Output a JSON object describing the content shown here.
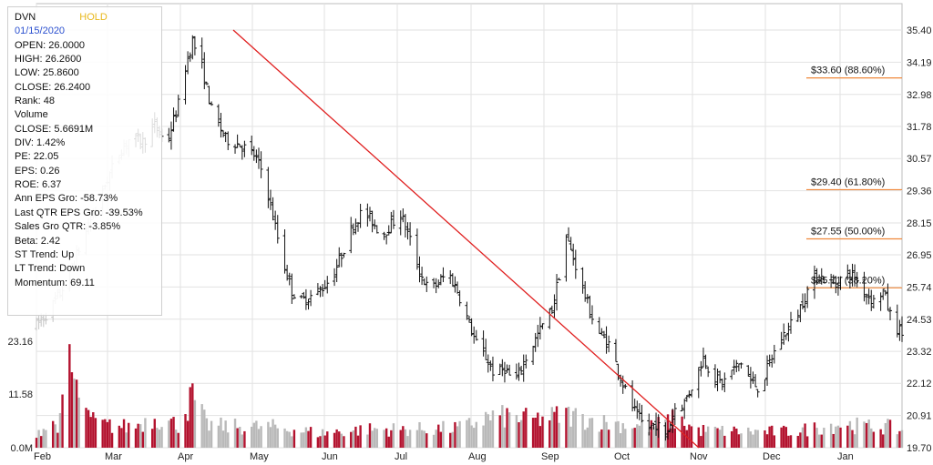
{
  "colors": {
    "grid": "#e2e2e2",
    "axis": "#444444",
    "candle": "#111111",
    "candle_faded": "#c4c4c4",
    "volume_up": "#b3122e",
    "volume_down": "#b9b9b9",
    "trend_line": "#e02020",
    "fib_line": "#f0883a",
    "rating": "#e8b81c",
    "date": "#2a4fcf"
  },
  "info": {
    "ticker": "DVN",
    "rating": "HOLD",
    "date": "01/15/2020",
    "lines": [
      "OPEN: 26.0000",
      "HIGH: 26.2600",
      "LOW: 25.8600",
      "CLOSE: 26.2400",
      "Rank: 48",
      "Volume",
      "CLOSE: 5.6691M",
      "DIV: 1.42%",
      "PE: 22.05",
      "EPS: 0.26",
      "ROE: 6.37",
      "Ann EPS Gro: -58.73%",
      "Last QTR EPS Gro: -39.53%",
      "Sales Gro QTR: -3.85%",
      "Beta: 2.42",
      "ST Trend: Up",
      "LT Trend: Down",
      "Momentum: 69.11"
    ]
  },
  "chart_data": {
    "type": "candlestick",
    "x_ticks": [
      "Feb",
      "Mar",
      "Apr",
      "May",
      "Jun",
      "Jul",
      "Aug",
      "Sep",
      "Oct",
      "Nov",
      "Dec",
      "Jan"
    ],
    "price_ticks": [
      "35.40",
      "34.19",
      "32.98",
      "31.78",
      "30.57",
      "29.36",
      "28.15",
      "26.95",
      "25.74",
      "24.53",
      "23.32",
      "22.12",
      "20.91",
      "19.70"
    ],
    "price_range": [
      19.7,
      35.4
    ],
    "volume_ticks": [
      "23.16",
      "11.58",
      "0.0M"
    ],
    "volume_range_millions": [
      0,
      23.16
    ],
    "grid": true,
    "fib_levels": [
      {
        "price": 33.6,
        "label": "$33.60 (88.60%)"
      },
      {
        "price": 29.4,
        "label": "$29.40 (61.80%)"
      },
      {
        "price": 27.55,
        "label": "$27.55 (50.00%)"
      },
      {
        "price": 25.71,
        "label": "$25.71 (38.20%)"
      }
    ],
    "trend_line": {
      "start": [
        "Apr 24",
        35.4
      ],
      "end": [
        "Oct 31",
        19.7
      ]
    },
    "price_anchors": [
      [
        0,
        24.3
      ],
      [
        5,
        24.8
      ],
      [
        10,
        25.5
      ],
      [
        15,
        26.5
      ],
      [
        20,
        27.6
      ],
      [
        25,
        28.7
      ],
      [
        30,
        29.8
      ],
      [
        35,
        30.8
      ],
      [
        40,
        31.4
      ],
      [
        45,
        31.2
      ],
      [
        50,
        31.8
      ],
      [
        55,
        31.1
      ],
      [
        60,
        32.6
      ],
      [
        63,
        34.0
      ],
      [
        66,
        35.0
      ],
      [
        70,
        34.0
      ],
      [
        74,
        32.4
      ],
      [
        80,
        31.3
      ],
      [
        86,
        31.1
      ],
      [
        92,
        30.7
      ],
      [
        96,
        30.0
      ],
      [
        100,
        28.4
      ],
      [
        104,
        26.8
      ],
      [
        108,
        25.6
      ],
      [
        112,
        25.2
      ],
      [
        118,
        25.5
      ],
      [
        122,
        25.8
      ],
      [
        126,
        26.3
      ],
      [
        130,
        27.2
      ],
      [
        134,
        28.1
      ],
      [
        138,
        28.6
      ],
      [
        142,
        28.2
      ],
      [
        146,
        27.7
      ],
      [
        150,
        28.1
      ],
      [
        154,
        28.5
      ],
      [
        158,
        27.5
      ],
      [
        162,
        26.3
      ],
      [
        166,
        25.6
      ],
      [
        170,
        25.9
      ],
      [
        174,
        26.3
      ],
      [
        178,
        25.6
      ],
      [
        182,
        24.6
      ],
      [
        186,
        23.6
      ],
      [
        190,
        23.1
      ],
      [
        194,
        22.4
      ],
      [
        198,
        22.7
      ],
      [
        202,
        22.1
      ],
      [
        206,
        22.9
      ],
      [
        210,
        23.6
      ],
      [
        214,
        24.3
      ],
      [
        218,
        24.9
      ],
      [
        221,
        26.2
      ],
      [
        223,
        27.9
      ],
      [
        226,
        27.1
      ],
      [
        230,
        26.0
      ],
      [
        234,
        24.8
      ],
      [
        238,
        24.0
      ],
      [
        242,
        23.6
      ],
      [
        246,
        22.6
      ],
      [
        250,
        21.6
      ],
      [
        254,
        20.9
      ],
      [
        258,
        20.4
      ],
      [
        262,
        20.6
      ],
      [
        266,
        20.1
      ],
      [
        270,
        21.2
      ],
      [
        274,
        21.4
      ],
      [
        278,
        22.2
      ],
      [
        282,
        23.1
      ],
      [
        286,
        22.4
      ],
      [
        290,
        22.1
      ],
      [
        294,
        22.6
      ],
      [
        298,
        22.9
      ],
      [
        302,
        22.2
      ],
      [
        306,
        21.9
      ],
      [
        310,
        22.9
      ],
      [
        314,
        23.7
      ],
      [
        318,
        24.2
      ],
      [
        322,
        24.8
      ],
      [
        326,
        25.6
      ],
      [
        330,
        26.2
      ],
      [
        334,
        26.0
      ],
      [
        338,
        25.8
      ],
      [
        342,
        26.3
      ],
      [
        346,
        26.1
      ],
      [
        350,
        25.6
      ],
      [
        354,
        25.2
      ],
      [
        358,
        25.6
      ],
      [
        362,
        24.4
      ],
      [
        366,
        24.0
      ]
    ],
    "volume_anchors_millions": [
      [
        0,
        3.6
      ],
      [
        10,
        5.5
      ],
      [
        14,
        18.5
      ],
      [
        18,
        9.5
      ],
      [
        22,
        6.0
      ],
      [
        30,
        4.8
      ],
      [
        40,
        4.5
      ],
      [
        50,
        6.5
      ],
      [
        60,
        5.0
      ],
      [
        66,
        11.0
      ],
      [
        72,
        5.0
      ],
      [
        80,
        4.6
      ],
      [
        100,
        4.5
      ],
      [
        120,
        3.2
      ],
      [
        140,
        4.0
      ],
      [
        160,
        4.0
      ],
      [
        180,
        4.3
      ],
      [
        190,
        6.5
      ],
      [
        200,
        6.8
      ],
      [
        210,
        6.0
      ],
      [
        224,
        7.2
      ],
      [
        240,
        5.5
      ],
      [
        260,
        4.5
      ],
      [
        270,
        6.2
      ],
      [
        280,
        3.8
      ],
      [
        300,
        3.5
      ],
      [
        320,
        3.5
      ],
      [
        340,
        5.2
      ],
      [
        350,
        4.6
      ],
      [
        360,
        4.5
      ],
      [
        366,
        3.6
      ]
    ],
    "volume_spikes_millions": [
      [
        12,
        23.0
      ],
      [
        17,
        14.8
      ],
      [
        22,
        8.2
      ],
      [
        68,
        11.3
      ]
    ]
  }
}
